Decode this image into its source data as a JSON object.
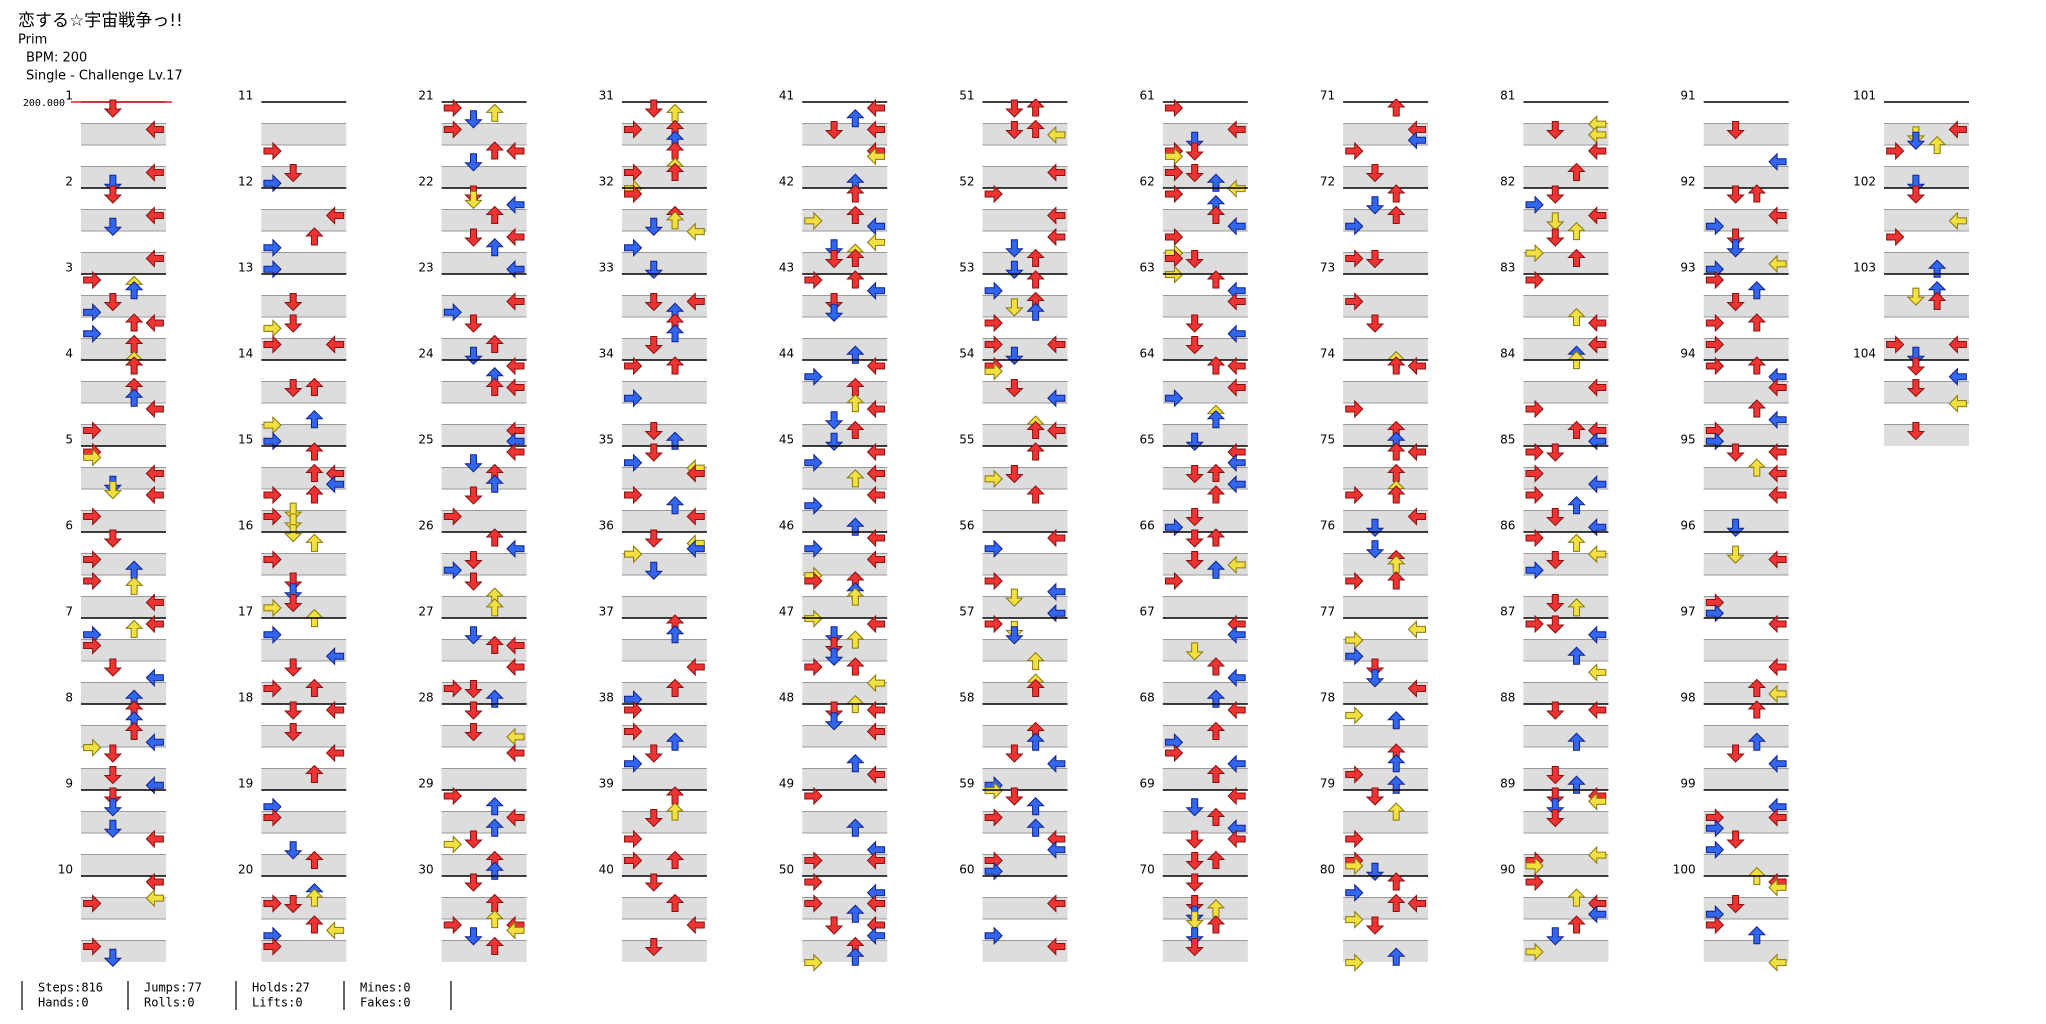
{
  "header": {
    "title": "恋する☆宇宙戦争っ!!",
    "artist": "Prim",
    "bpm": "BPM: 200",
    "difficulty": "Single - Challenge Lv.17"
  },
  "bpm_marker": "200.000",
  "measures": [
    1,
    2,
    3,
    4,
    5,
    6,
    7,
    8,
    9,
    10,
    11,
    12,
    13,
    14,
    15,
    16,
    17,
    18,
    19,
    20,
    21,
    22,
    23,
    24,
    25,
    26,
    27,
    28,
    29,
    30,
    31,
    32,
    33,
    34,
    35,
    36,
    37,
    38,
    39,
    40,
    41,
    42,
    43,
    44,
    45,
    46,
    47,
    48,
    49,
    50,
    51,
    52,
    53,
    54,
    55,
    56,
    57,
    58,
    59,
    60,
    61,
    62,
    63,
    64,
    65,
    66,
    67,
    68,
    69,
    70,
    71,
    72,
    73,
    74,
    75,
    76,
    77,
    78,
    79,
    80,
    81,
    82,
    83,
    84,
    85,
    86,
    87,
    88,
    89,
    90,
    91,
    92,
    93,
    94,
    95,
    96,
    97,
    98,
    99,
    100,
    101,
    102,
    103,
    104
  ],
  "stats": [
    [
      "Steps:816",
      "Hands:0"
    ],
    [
      "Jumps:77",
      "Rolls:0"
    ],
    [
      "Holds:27",
      "Lifts:0"
    ],
    [
      "Mines:0",
      "Fakes:0"
    ]
  ]
}
